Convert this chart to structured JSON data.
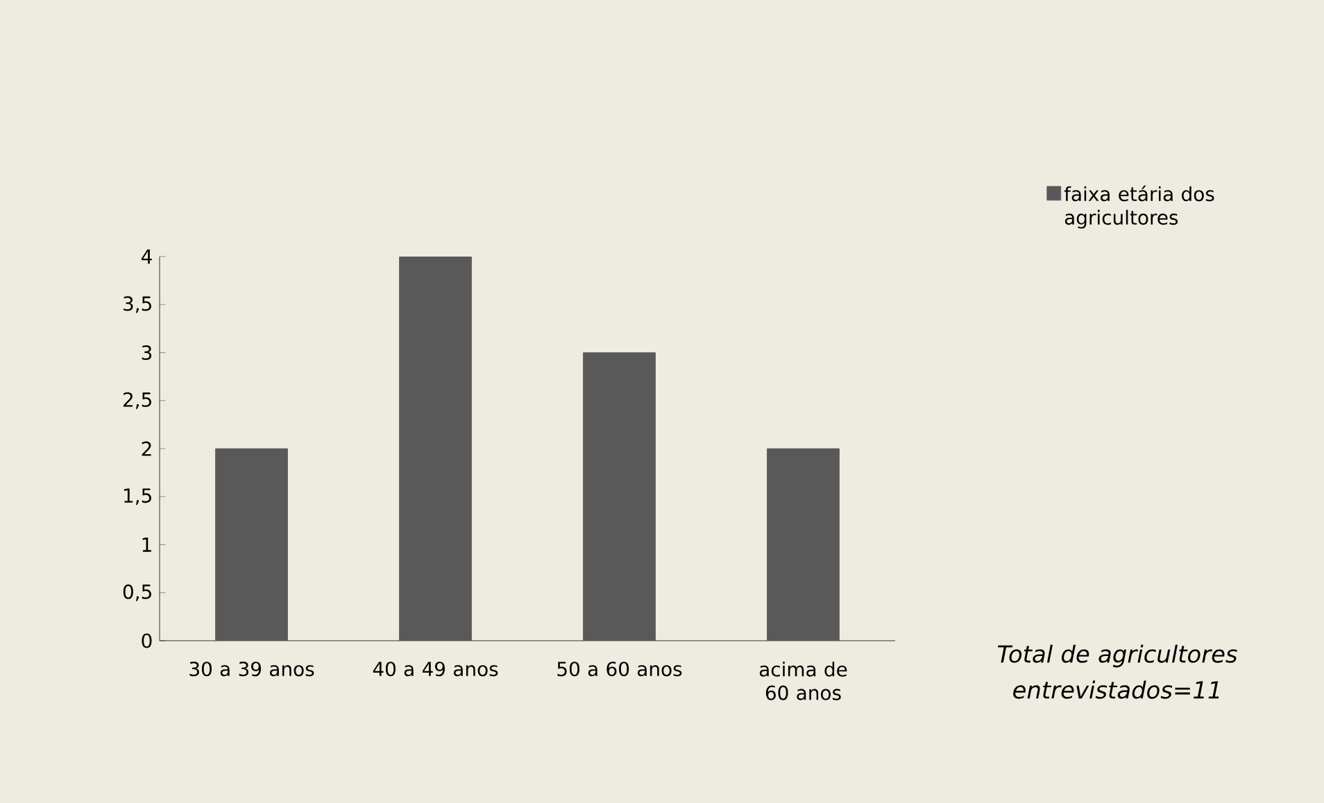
{
  "chart_data": {
    "type": "bar",
    "categories": [
      "30 a 39 anos",
      "40 a 49 anos",
      "50 a 60 anos",
      "acima de 60 anos"
    ],
    "series": [
      {
        "name": "faixa etária dos agricultores",
        "color": "#595959",
        "values": [
          2,
          4,
          3,
          2
        ]
      }
    ],
    "ylim": [
      0,
      4
    ],
    "yticks": [
      0,
      {
        "value": 0.5,
        "label": "0,5"
      },
      1,
      {
        "value": 1.5,
        "label": "1,5"
      },
      2,
      {
        "value": 2.5,
        "label": "2,5"
      },
      3,
      {
        "value": 3.5,
        "label": "3,5"
      },
      4
    ],
    "legend": "top right",
    "annotations": [
      "Total  de agricultores entrevistados=11"
    ]
  }
}
